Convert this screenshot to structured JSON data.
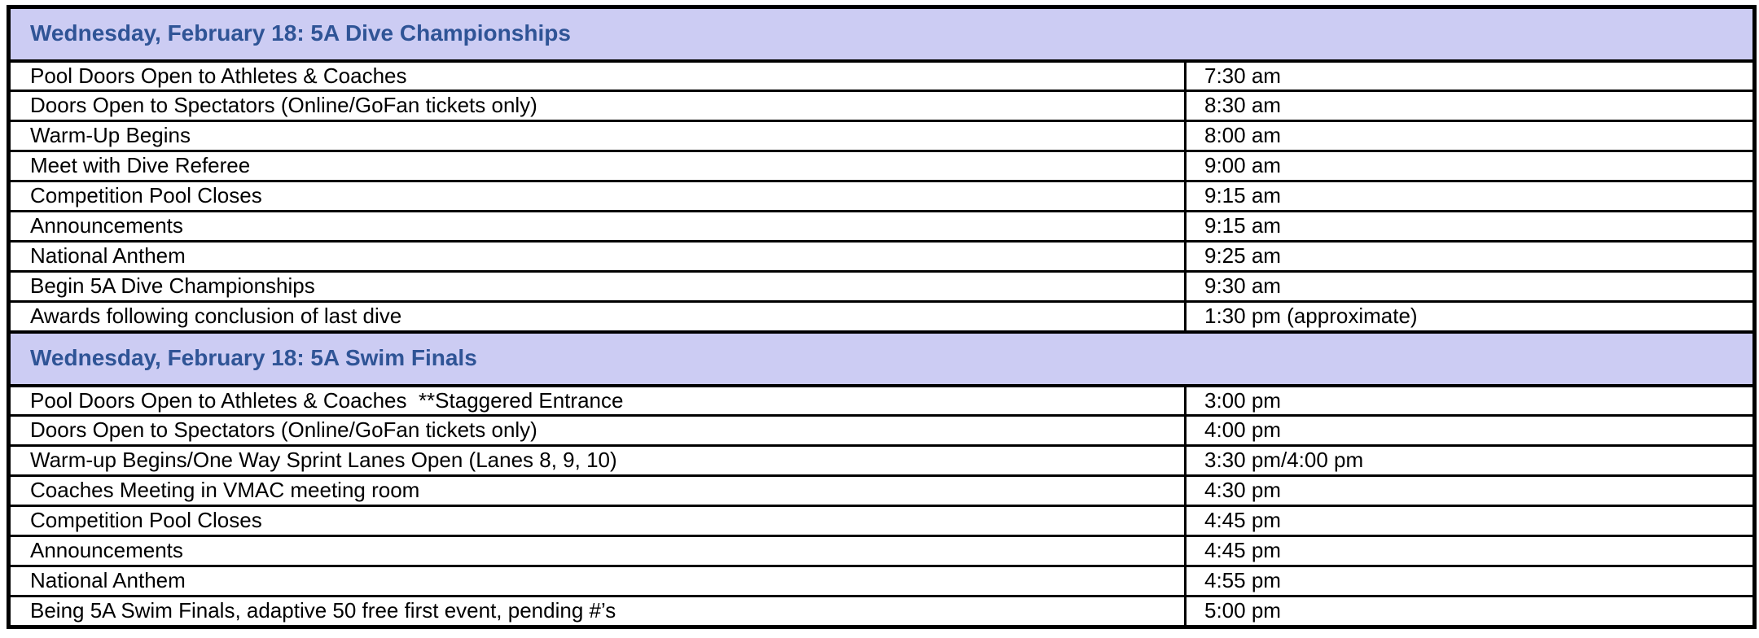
{
  "document": {
    "type": "event-schedule-table",
    "columns": [
      "event",
      "time"
    ]
  },
  "colors": {
    "section_header_bg": "#CCCCF3",
    "section_header_text": "#2F5496",
    "table_border": "#000000",
    "row_bg": "#FFFFFF",
    "row_text": "#000000"
  },
  "table": {
    "sections": [
      {
        "header": "Wednesday, February 18: 5A Dive Championships",
        "rows": [
          {
            "event": "Pool Doors Open to Athletes & Coaches",
            "time": "7:30 am"
          },
          {
            "event": "Doors Open to Spectators (Online/GoFan tickets only)",
            "time": "8:30 am"
          },
          {
            "event": "Warm-Up Begins",
            "time": "8:00 am"
          },
          {
            "event": "Meet with Dive Referee",
            "time": "9:00 am"
          },
          {
            "event": "Competition Pool Closes",
            "time": "9:15 am"
          },
          {
            "event": "Announcements",
            "time": "9:15 am"
          },
          {
            "event": "National Anthem",
            "time": "9:25 am"
          },
          {
            "event": "Begin 5A Dive Championships",
            "time": "9:30 am"
          },
          {
            "event": "Awards following conclusion of last dive",
            "time": "1:30 pm (approximate)"
          }
        ]
      },
      {
        "header": "Wednesday, February 18: 5A Swim Finals",
        "rows": [
          {
            "event": "Pool Doors Open to Athletes & Coaches  **Staggered Entrance",
            "time": "3:00 pm"
          },
          {
            "event": "Doors Open to Spectators (Online/GoFan tickets only)",
            "time": "4:00 pm"
          },
          {
            "event": "Warm-up Begins/One Way Sprint Lanes Open (Lanes 8, 9, 10)",
            "time": "3:30 pm/4:00 pm"
          },
          {
            "event": "Coaches Meeting in VMAC meeting room",
            "time": "4:30 pm"
          },
          {
            "event": "Competition Pool Closes",
            "time": "4:45 pm"
          },
          {
            "event": "Announcements",
            "time": "4:45 pm"
          },
          {
            "event": "National Anthem",
            "time": "4:55 pm"
          },
          {
            "event": "Being 5A Swim Finals, adaptive 50 free first event, pending #’s",
            "time": "5:00 pm"
          }
        ]
      }
    ]
  }
}
